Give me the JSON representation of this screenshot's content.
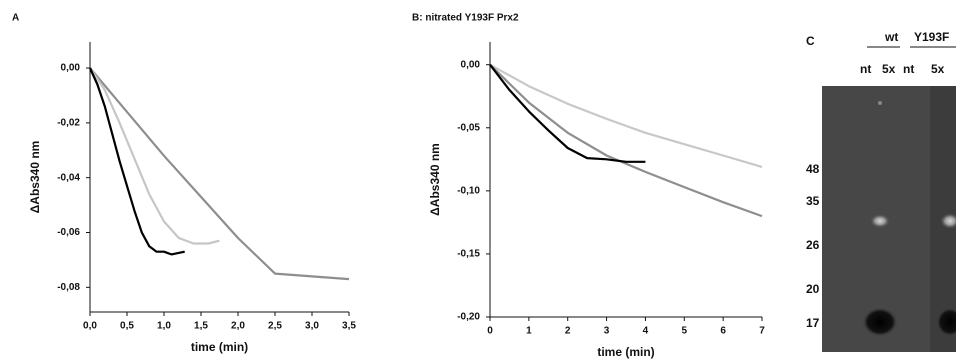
{
  "chart_data": [
    {
      "type": "line",
      "title": "A",
      "x_label": "time (min)",
      "y_label": "ΔAbs340 nm",
      "xlim": [
        0,
        3.5
      ],
      "ylim": [
        -0.089,
        0.0095
      ],
      "xticks": [
        {
          "value": 0,
          "label": "0,0"
        },
        {
          "value": 0.5,
          "label": "0,5"
        },
        {
          "value": 1,
          "label": "1,0"
        },
        {
          "value": 1.5,
          "label": "1,5"
        },
        {
          "value": 2,
          "label": "2,0"
        },
        {
          "value": 2.5,
          "label": "2,5"
        },
        {
          "value": 3,
          "label": "3,0"
        },
        {
          "value": 3.5,
          "label": "3,5"
        }
      ],
      "yticks": [
        {
          "value": 0,
          "label": "0,00"
        },
        {
          "value": -0.02,
          "label": "-0,02"
        },
        {
          "value": -0.04,
          "label": "-0,04"
        },
        {
          "value": -0.06,
          "label": "-0,06"
        },
        {
          "value": -0.08,
          "label": "-0,08"
        }
      ],
      "series": [
        {
          "color": "#8e8e8e",
          "x": [
            0,
            0.5,
            1,
            1.5,
            2,
            2.5,
            3,
            3.5
          ],
          "values": [
            0,
            -0.016,
            -0.032,
            -0.047,
            -0.062,
            -0.075,
            -0.076,
            -0.077
          ]
        },
        {
          "color": "#c6c6c6",
          "x": [
            0,
            0.2,
            0.4,
            0.6,
            0.8,
            1,
            1.2,
            1.4,
            1.6,
            1.75
          ],
          "values": [
            0,
            -0.008,
            -0.02,
            -0.033,
            -0.046,
            -0.056,
            -0.062,
            -0.064,
            -0.064,
            -0.063
          ]
        },
        {
          "color": "#000000",
          "x": [
            0,
            0.1,
            0.2,
            0.3,
            0.4,
            0.5,
            0.6,
            0.7,
            0.8,
            0.9,
            1,
            1.1,
            1.28
          ],
          "values": [
            0,
            -0.006,
            -0.014,
            -0.024,
            -0.034,
            -0.043,
            -0.052,
            -0.06,
            -0.065,
            -0.067,
            -0.067,
            -0.068,
            -0.067
          ]
        }
      ]
    },
    {
      "type": "line",
      "title": "B: nitrated Y193F Prx2",
      "x_label": "time (min)",
      "y_label": "ΔAbs340 nm",
      "xlim": [
        0,
        7
      ],
      "ylim": [
        -0.2,
        0.018
      ],
      "xticks": [
        0,
        1,
        2,
        3,
        4,
        5,
        6,
        7
      ],
      "yticks": [
        {
          "value": 0,
          "label": "0,00"
        },
        {
          "value": -0.05,
          "label": "-0,05"
        },
        {
          "value": -0.1,
          "label": "-0,10"
        },
        {
          "value": -0.15,
          "label": "-0,15"
        },
        {
          "value": -0.2,
          "label": "-0,20"
        }
      ],
      "series": [
        {
          "color": "#c8c8c8",
          "x": [
            0,
            1,
            2,
            3,
            4,
            5,
            6,
            7
          ],
          "values": [
            0,
            -0.017,
            -0.031,
            -0.043,
            -0.054,
            -0.063,
            -0.072,
            -0.081
          ]
        },
        {
          "color": "#8e8e8e",
          "x": [
            0,
            1,
            2,
            3,
            4,
            5,
            6,
            7
          ],
          "values": [
            0,
            -0.03,
            -0.054,
            -0.072,
            -0.085,
            -0.097,
            -0.109,
            -0.12
          ]
        },
        {
          "color": "#000000",
          "x": [
            0,
            0.5,
            1,
            1.5,
            2,
            2.5,
            3,
            3.5,
            4
          ],
          "values": [
            0,
            -0.02,
            -0.037,
            -0.052,
            -0.066,
            -0.074,
            -0.075,
            -0.077,
            -0.077
          ]
        }
      ]
    }
  ],
  "panel_c": {
    "label": "C",
    "groups": [
      "wt",
      "Y193F"
    ],
    "lanes": [
      "nt",
      "5x",
      "nt",
      "5x"
    ],
    "markers": [
      "48",
      "35",
      "26",
      "20",
      "17"
    ]
  }
}
